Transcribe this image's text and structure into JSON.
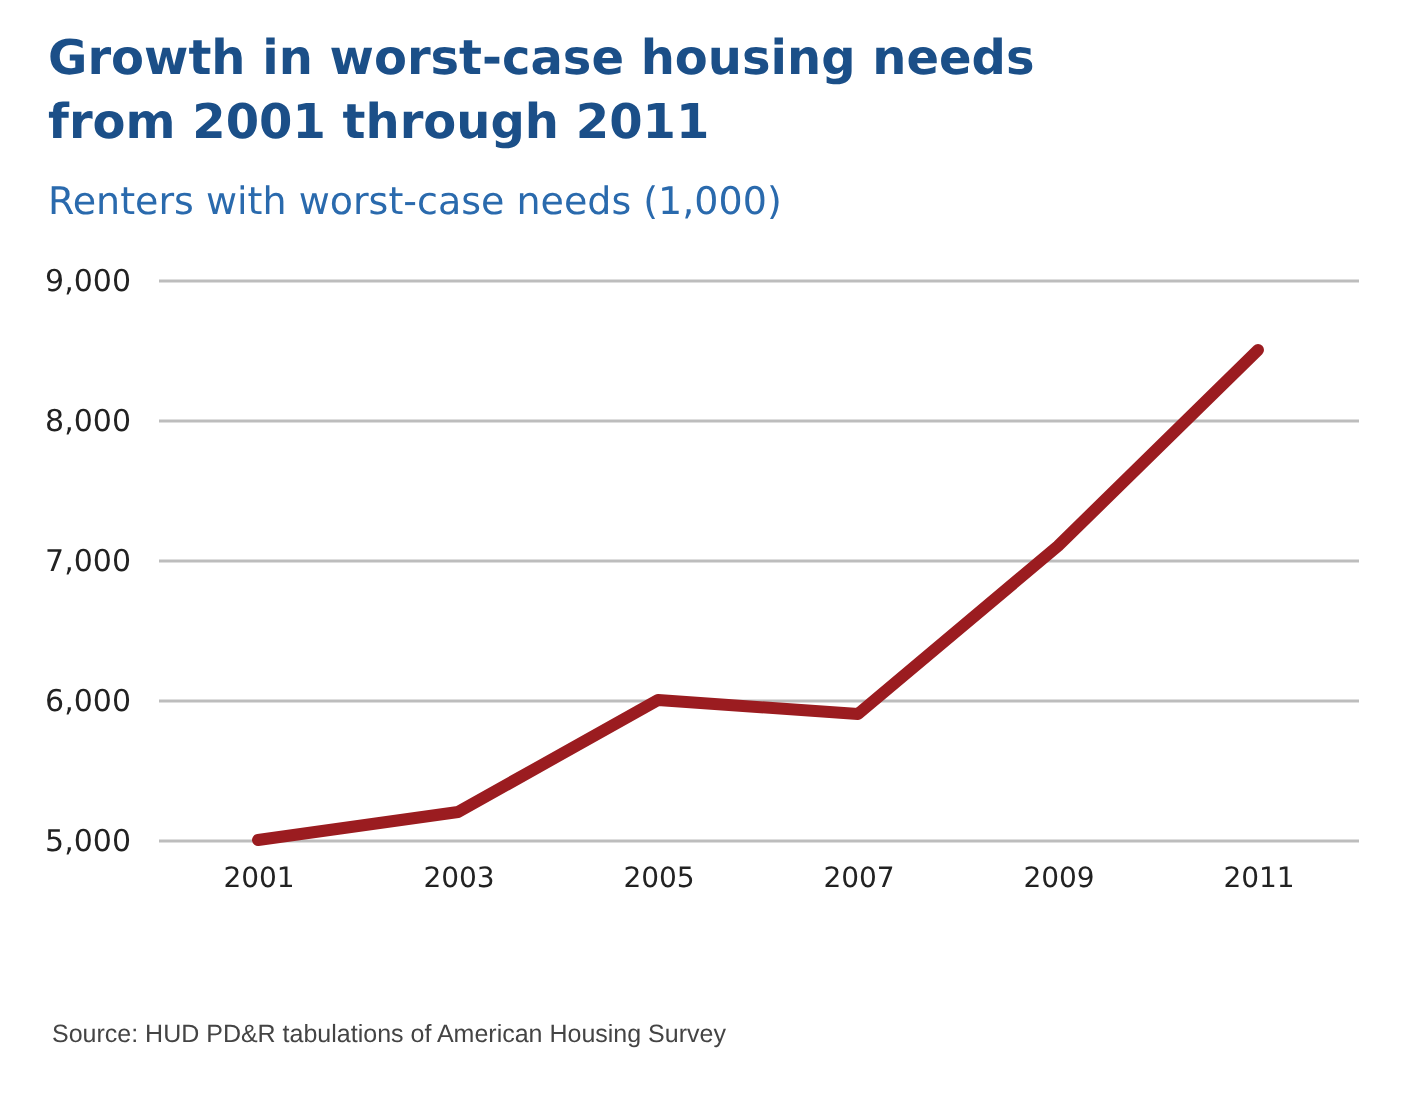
{
  "chart_data": {
    "type": "line",
    "title": "Growth in worst-case housing needs\nfrom 2001 through 2011",
    "subtitle": "Renters with worst-case needs (1,000)",
    "categories": [
      "2001",
      "2003",
      "2005",
      "2007",
      "2009",
      "2011"
    ],
    "series": [
      {
        "color": "#9b1c20",
        "values": [
          5000,
          5200,
          6000,
          5900,
          7100,
          8500
        ]
      }
    ],
    "ylim": [
      5000,
      9000
    ],
    "yticks": [
      {
        "value": 5000,
        "label": "5,000"
      },
      {
        "value": 6000,
        "label": "6,000"
      },
      {
        "value": 7000,
        "label": "7,000"
      },
      {
        "value": 8000,
        "label": "8,000"
      },
      {
        "value": 9000,
        "label": "9,000"
      }
    ],
    "grid": "y",
    "legend": false,
    "marker": "none",
    "line_style": "solid",
    "annotations": [
      "Source: HUD PD&R tabulations of American Housing Survey"
    ]
  }
}
